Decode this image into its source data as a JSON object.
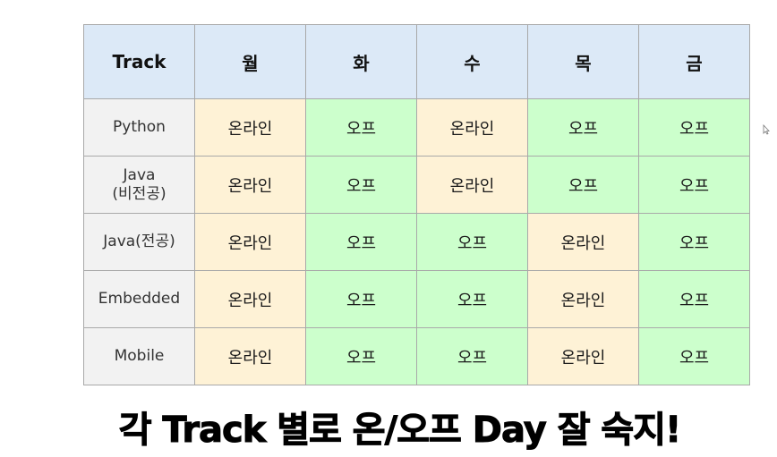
{
  "table": {
    "header": {
      "track": "Track",
      "days": [
        "월",
        "화",
        "수",
        "목",
        "금"
      ]
    },
    "rows": [
      {
        "track": "Python",
        "cells": [
          "온라인",
          "오프",
          "온라인",
          "오프",
          "오프"
        ]
      },
      {
        "track": "Java\n(비전공)",
        "cells": [
          "온라인",
          "오프",
          "온라인",
          "오프",
          "오프"
        ]
      },
      {
        "track": "Java(전공)",
        "cells": [
          "온라인",
          "오프",
          "오프",
          "온라인",
          "오프"
        ]
      },
      {
        "track": "Embedded",
        "cells": [
          "온라인",
          "오프",
          "오프",
          "온라인",
          "오프"
        ]
      },
      {
        "track": "Mobile",
        "cells": [
          "온라인",
          "오프",
          "오프",
          "온라인",
          "오프"
        ]
      }
    ]
  },
  "caption": "각 Track 별로 온/오프 Day 잘 숙지!",
  "colors": {
    "header_bg": "#dce9f7",
    "track_bg": "#f2f2f2",
    "online_bg": "#fef2d6",
    "offline_bg": "#ccffcc",
    "border": "#a9a9a9"
  },
  "icons": {
    "cursor": "mouse-pointer-icon"
  }
}
